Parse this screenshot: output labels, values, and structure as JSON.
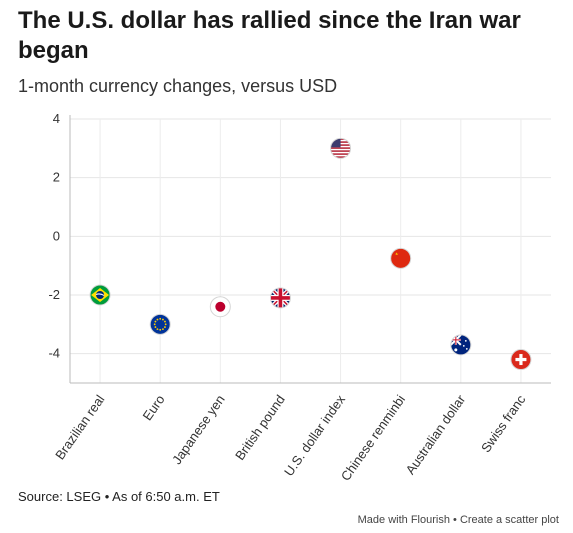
{
  "title": "The U.S. dollar has rallied since the Iran war began",
  "subtitle": "1-month currency changes, versus USD",
  "source": "Source: LSEG • As of 6:50 a.m. ET",
  "footer": {
    "made_with": "Made with Flourish",
    "separator": " • ",
    "create_link": "Create a scatter plot"
  },
  "chart_data": {
    "type": "scatter",
    "title": "The U.S. dollar has rallied since the Iran war began",
    "subtitle": "1-month currency changes, versus USD",
    "xlabel": "",
    "ylabel": "",
    "ylim": [
      -5,
      4
    ],
    "yticks": [
      4,
      2,
      0,
      -2,
      -4
    ],
    "grid": true,
    "categories": [
      "Brazilian real",
      "Euro",
      "Japanese yen",
      "British pound",
      "U.S. dollar index",
      "Chinese renminbi",
      "Australian dollar",
      "Swiss franc"
    ],
    "values": [
      -2.0,
      -3.0,
      -2.4,
      -2.1,
      3.0,
      -0.75,
      -3.7,
      -4.2
    ],
    "markers": [
      "brazil-flag",
      "eu-flag",
      "japan-flag",
      "uk-flag",
      "us-flag",
      "china-flag",
      "australia-flag",
      "switzerland-flag"
    ]
  }
}
